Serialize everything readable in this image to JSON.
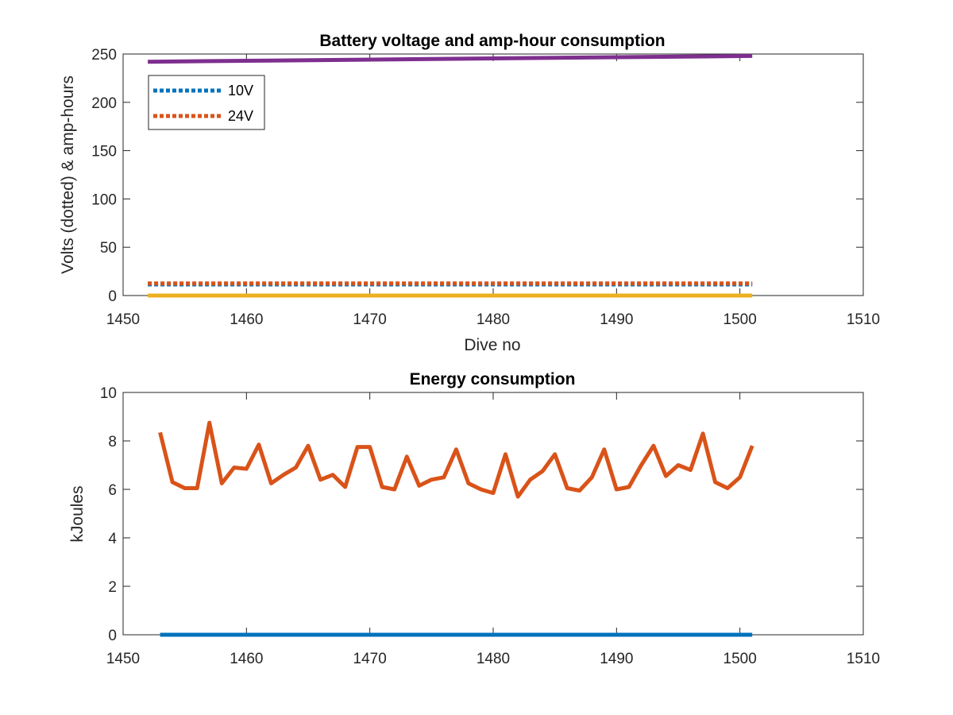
{
  "chart_data": [
    {
      "type": "line",
      "title": "Battery voltage and amp-hour consumption",
      "xlabel": "Dive no",
      "ylabel": "Volts (dotted) & amp-hours",
      "xlim": [
        1450,
        1510
      ],
      "ylim": [
        0,
        250
      ],
      "xticks": [
        1450,
        1460,
        1470,
        1480,
        1490,
        1500,
        1510
      ],
      "yticks": [
        0,
        50,
        100,
        150,
        200,
        250
      ],
      "legend_position": "top-left",
      "series": [
        {
          "name": "10V",
          "style": "dotted",
          "color": "#0072BD",
          "x": [
            1452,
            1501
          ],
          "y": [
            11.5,
            11.5
          ]
        },
        {
          "name": "24V",
          "style": "dotted",
          "color": "#D95319",
          "x": [
            1452,
            1501
          ],
          "y": [
            12.5,
            12.5
          ]
        },
        {
          "style": "solid",
          "color": "#EDB120",
          "x": [
            1452,
            1501
          ],
          "y": [
            0,
            0
          ]
        },
        {
          "style": "solid",
          "color": "#7E2F8E",
          "x": [
            1452,
            1501
          ],
          "y": [
            242,
            248
          ]
        }
      ]
    },
    {
      "type": "line",
      "title": "Energy consumption",
      "xlabel": "",
      "ylabel": "kJoules",
      "xlim": [
        1450,
        1510
      ],
      "ylim": [
        0,
        10
      ],
      "xticks": [
        1450,
        1460,
        1470,
        1480,
        1490,
        1500,
        1510
      ],
      "yticks": [
        0,
        2,
        4,
        6,
        8,
        10
      ],
      "series": [
        {
          "color": "#D95319",
          "x": [
            1453,
            1454,
            1455,
            1456,
            1457,
            1458,
            1459,
            1460,
            1461,
            1462,
            1463,
            1464,
            1465,
            1466,
            1467,
            1468,
            1469,
            1470,
            1471,
            1472,
            1473,
            1474,
            1475,
            1476,
            1477,
            1478,
            1479,
            1480,
            1481,
            1482,
            1483,
            1484,
            1485,
            1486,
            1487,
            1488,
            1489,
            1490,
            1491,
            1492,
            1493,
            1494,
            1495,
            1496,
            1497,
            1498,
            1499,
            1500,
            1501
          ],
          "y": [
            8.35,
            6.3,
            6.05,
            6.05,
            8.75,
            6.25,
            6.9,
            6.85,
            7.85,
            6.25,
            6.6,
            6.9,
            7.8,
            6.4,
            6.6,
            6.1,
            7.75,
            7.75,
            6.1,
            6.0,
            7.35,
            6.15,
            6.4,
            6.5,
            7.65,
            6.25,
            6.0,
            5.85,
            7.45,
            5.7,
            6.4,
            6.75,
            7.45,
            6.05,
            5.95,
            6.5,
            7.65,
            6.0,
            6.1,
            7.0,
            7.8,
            6.55,
            7.0,
            6.8,
            8.3,
            6.3,
            6.05,
            6.5,
            7.8
          ]
        },
        {
          "color": "#0072BD",
          "x": [
            1453,
            1501
          ],
          "y": [
            0,
            0
          ]
        }
      ]
    }
  ]
}
